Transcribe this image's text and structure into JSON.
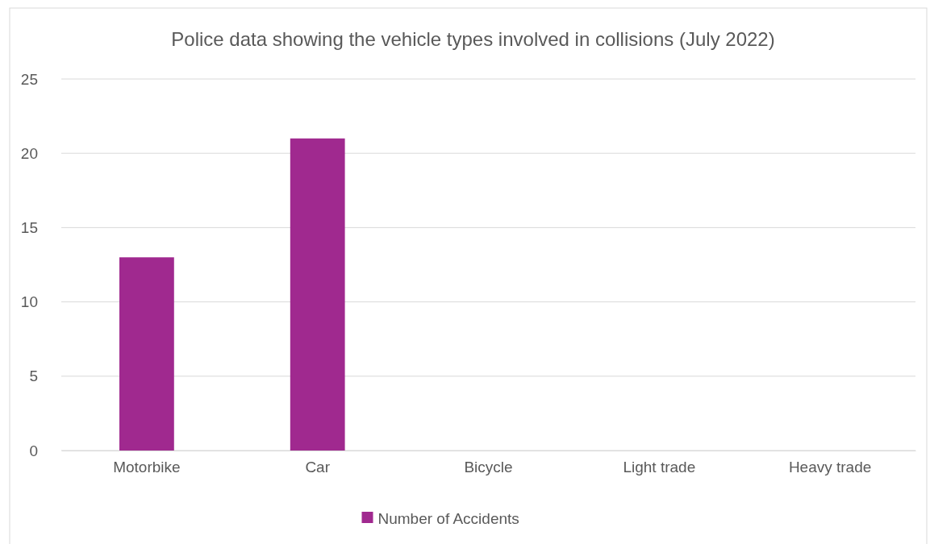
{
  "chart_data": {
    "type": "bar",
    "title": "Police data showing the vehicle types involved in collisions (July 2022)",
    "categories": [
      "Motorbike",
      "Car",
      "Bicycle",
      "Light trade",
      "Heavy trade"
    ],
    "series": [
      {
        "name": "Number of Accidents",
        "color": "#a0298f",
        "values": [
          13,
          21,
          0,
          0,
          0
        ]
      }
    ],
    "ylim": [
      0,
      25
    ],
    "yticks": [
      0,
      5,
      10,
      15,
      20,
      25
    ],
    "grid": "y",
    "legend": "bottom"
  }
}
